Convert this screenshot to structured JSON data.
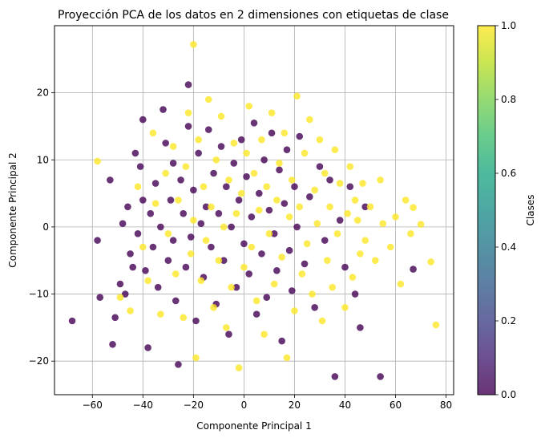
{
  "chart_data": {
    "type": "scatter",
    "title": "Proyección PCA de los datos en 2 dimensiones con etiquetas de clase",
    "xlabel": "Componente Principal 1",
    "ylabel": "Componente Principal 2",
    "xlim": [
      -75,
      83
    ],
    "ylim": [
      -25,
      30
    ],
    "xticks": [
      -60,
      -40,
      -20,
      0,
      20,
      40,
      60,
      80
    ],
    "yticks": [
      -20,
      -10,
      0,
      10,
      20
    ],
    "grid": true,
    "colormap": "viridis",
    "point_alpha": 0.8,
    "colorbar": {
      "label": "Clases",
      "range": [
        0,
        1
      ],
      "ticks": [
        0.0,
        0.2,
        0.4,
        0.6,
        0.8,
        1.0
      ],
      "tick_labels": [
        "0.0",
        "0.2",
        "0.4",
        "0.6",
        "0.8",
        "1.0"
      ]
    },
    "colors": {
      "class_0": "#440154",
      "class_1": "#fde725"
    },
    "series": [
      {
        "class_value": 0,
        "points": [
          [
            -68,
            -14
          ],
          [
            -58,
            -2
          ],
          [
            -57,
            -10.5
          ],
          [
            -53,
            7
          ],
          [
            -52,
            -17.5
          ],
          [
            -51,
            -13.5
          ],
          [
            -49,
            -8.5
          ],
          [
            -48,
            0.5
          ],
          [
            -47,
            -10
          ],
          [
            -46,
            3
          ],
          [
            -45,
            -4
          ],
          [
            -44,
            -6
          ],
          [
            -43,
            11
          ],
          [
            -42,
            -1
          ],
          [
            -41,
            9
          ],
          [
            -40,
            16
          ],
          [
            -40,
            4
          ],
          [
            -39,
            -6.5
          ],
          [
            -38,
            -18
          ],
          [
            -37,
            2
          ],
          [
            -36,
            -3
          ],
          [
            -35,
            6.5
          ],
          [
            -34,
            -9
          ],
          [
            -33,
            0
          ],
          [
            -32,
            17.5
          ],
          [
            -31,
            12.5
          ],
          [
            -30,
            -5
          ],
          [
            -29,
            4
          ],
          [
            -28,
            -2
          ],
          [
            -28,
            9.5
          ],
          [
            -27,
            -11
          ],
          [
            -26,
            -20.5
          ],
          [
            -25,
            7
          ],
          [
            -24,
            2
          ],
          [
            -23,
            -6
          ],
          [
            -22,
            15
          ],
          [
            -22,
            21.2
          ],
          [
            -21,
            -1.5
          ],
          [
            -20,
            5.5
          ],
          [
            -19,
            -14
          ],
          [
            -18,
            11
          ],
          [
            -17,
            0.5
          ],
          [
            -16,
            -7.5
          ],
          [
            -15,
            3
          ],
          [
            -14,
            14.5
          ],
          [
            -13,
            -3
          ],
          [
            -12,
            8
          ],
          [
            -11,
            -11.5
          ],
          [
            -10,
            2
          ],
          [
            -9,
            12
          ],
          [
            -8,
            -5
          ],
          [
            -7,
            6
          ],
          [
            -6,
            -16
          ],
          [
            -5,
            0
          ],
          [
            -4,
            9.5
          ],
          [
            -3,
            -9
          ],
          [
            -2,
            4
          ],
          [
            -1,
            13
          ],
          [
            0,
            -2.5
          ],
          [
            1,
            7.5
          ],
          [
            2,
            -7
          ],
          [
            3,
            1.5
          ],
          [
            4,
            15.5
          ],
          [
            5,
            -13
          ],
          [
            6,
            5
          ],
          [
            7,
            -4
          ],
          [
            8,
            10
          ],
          [
            9,
            -10.5
          ],
          [
            10,
            2.5
          ],
          [
            11,
            14
          ],
          [
            12,
            -1
          ],
          [
            13,
            -6.5
          ],
          [
            14,
            8.5
          ],
          [
            15,
            -17
          ],
          [
            16,
            3.5
          ],
          [
            17,
            11.5
          ],
          [
            18,
            -3.5
          ],
          [
            19,
            -9.5
          ],
          [
            20,
            6
          ],
          [
            21,
            0
          ],
          [
            22,
            13.5
          ],
          [
            24,
            -5.5
          ],
          [
            26,
            4.5
          ],
          [
            28,
            -12
          ],
          [
            30,
            9
          ],
          [
            32,
            -2
          ],
          [
            34,
            7
          ],
          [
            36,
            -22.3
          ],
          [
            38,
            1
          ],
          [
            40,
            -6
          ],
          [
            42,
            6
          ],
          [
            44,
            -10
          ],
          [
            46,
            -15
          ],
          [
            48,
            3
          ],
          [
            54,
            -22.3
          ],
          [
            67,
            -6.3
          ]
        ]
      },
      {
        "class_value": 1,
        "points": [
          [
            -58,
            9.8
          ],
          [
            -49,
            -10.5
          ],
          [
            -45,
            -12.5
          ],
          [
            -42,
            6
          ],
          [
            -40,
            -3
          ],
          [
            -38,
            -8
          ],
          [
            -36,
            14
          ],
          [
            -35,
            3.5
          ],
          [
            -33,
            -13
          ],
          [
            -31,
            8
          ],
          [
            -30,
            -1
          ],
          [
            -28,
            12
          ],
          [
            -27,
            -7
          ],
          [
            -26,
            4
          ],
          [
            -24,
            -13.5
          ],
          [
            -23,
            9
          ],
          [
            -22,
            17
          ],
          [
            -21,
            -4
          ],
          [
            -20,
            27.2
          ],
          [
            -20,
            1
          ],
          [
            -19,
            -19.5
          ],
          [
            -18,
            13
          ],
          [
            -17,
            -8
          ],
          [
            -16,
            6
          ],
          [
            -15,
            -2
          ],
          [
            -14,
            19
          ],
          [
            -13,
            3
          ],
          [
            -12,
            -12
          ],
          [
            -11,
            10
          ],
          [
            -10,
            -5
          ],
          [
            -9,
            16.5
          ],
          [
            -8,
            0
          ],
          [
            -7,
            -15
          ],
          [
            -6,
            7
          ],
          [
            -5,
            -9
          ],
          [
            -4,
            12.5
          ],
          [
            -3,
            2
          ],
          [
            -2,
            -21
          ],
          [
            -1,
            5
          ],
          [
            0,
            -6
          ],
          [
            1,
            11
          ],
          [
            2,
            18
          ],
          [
            3,
            -3
          ],
          [
            4,
            8
          ],
          [
            5,
            -11
          ],
          [
            6,
            2.5
          ],
          [
            7,
            13
          ],
          [
            8,
            -16
          ],
          [
            9,
            6
          ],
          [
            10,
            -1
          ],
          [
            11,
            17
          ],
          [
            12,
            -8.5
          ],
          [
            13,
            4
          ],
          [
            14,
            9.5
          ],
          [
            15,
            -4.5
          ],
          [
            16,
            14
          ],
          [
            17,
            -19.5
          ],
          [
            18,
            1.5
          ],
          [
            19,
            7
          ],
          [
            20,
            -12.5
          ],
          [
            21,
            19.5
          ],
          [
            22,
            3
          ],
          [
            23,
            -7
          ],
          [
            24,
            11
          ],
          [
            25,
            -2.5
          ],
          [
            26,
            16
          ],
          [
            27,
            -10
          ],
          [
            28,
            5.5
          ],
          [
            29,
            0.5
          ],
          [
            30,
            13
          ],
          [
            31,
            -14
          ],
          [
            32,
            8
          ],
          [
            33,
            -5
          ],
          [
            34,
            3
          ],
          [
            35,
            -9
          ],
          [
            36,
            11.5
          ],
          [
            37,
            -1
          ],
          [
            38,
            6.5
          ],
          [
            40,
            -12
          ],
          [
            41,
            2
          ],
          [
            42,
            9
          ],
          [
            43,
            -7.5
          ],
          [
            44,
            4
          ],
          [
            45,
            1
          ],
          [
            46,
            -4
          ],
          [
            47,
            6.5
          ],
          [
            48,
            -2
          ],
          [
            50,
            3
          ],
          [
            52,
            -5
          ],
          [
            54,
            7
          ],
          [
            55,
            0.5
          ],
          [
            58,
            -3
          ],
          [
            60,
            1.5
          ],
          [
            62,
            -8.5
          ],
          [
            64,
            4
          ],
          [
            66,
            -1
          ],
          [
            67,
            2.9
          ],
          [
            70,
            0.4
          ],
          [
            74,
            -5.2
          ],
          [
            76,
            -14.6
          ]
        ]
      }
    ]
  }
}
